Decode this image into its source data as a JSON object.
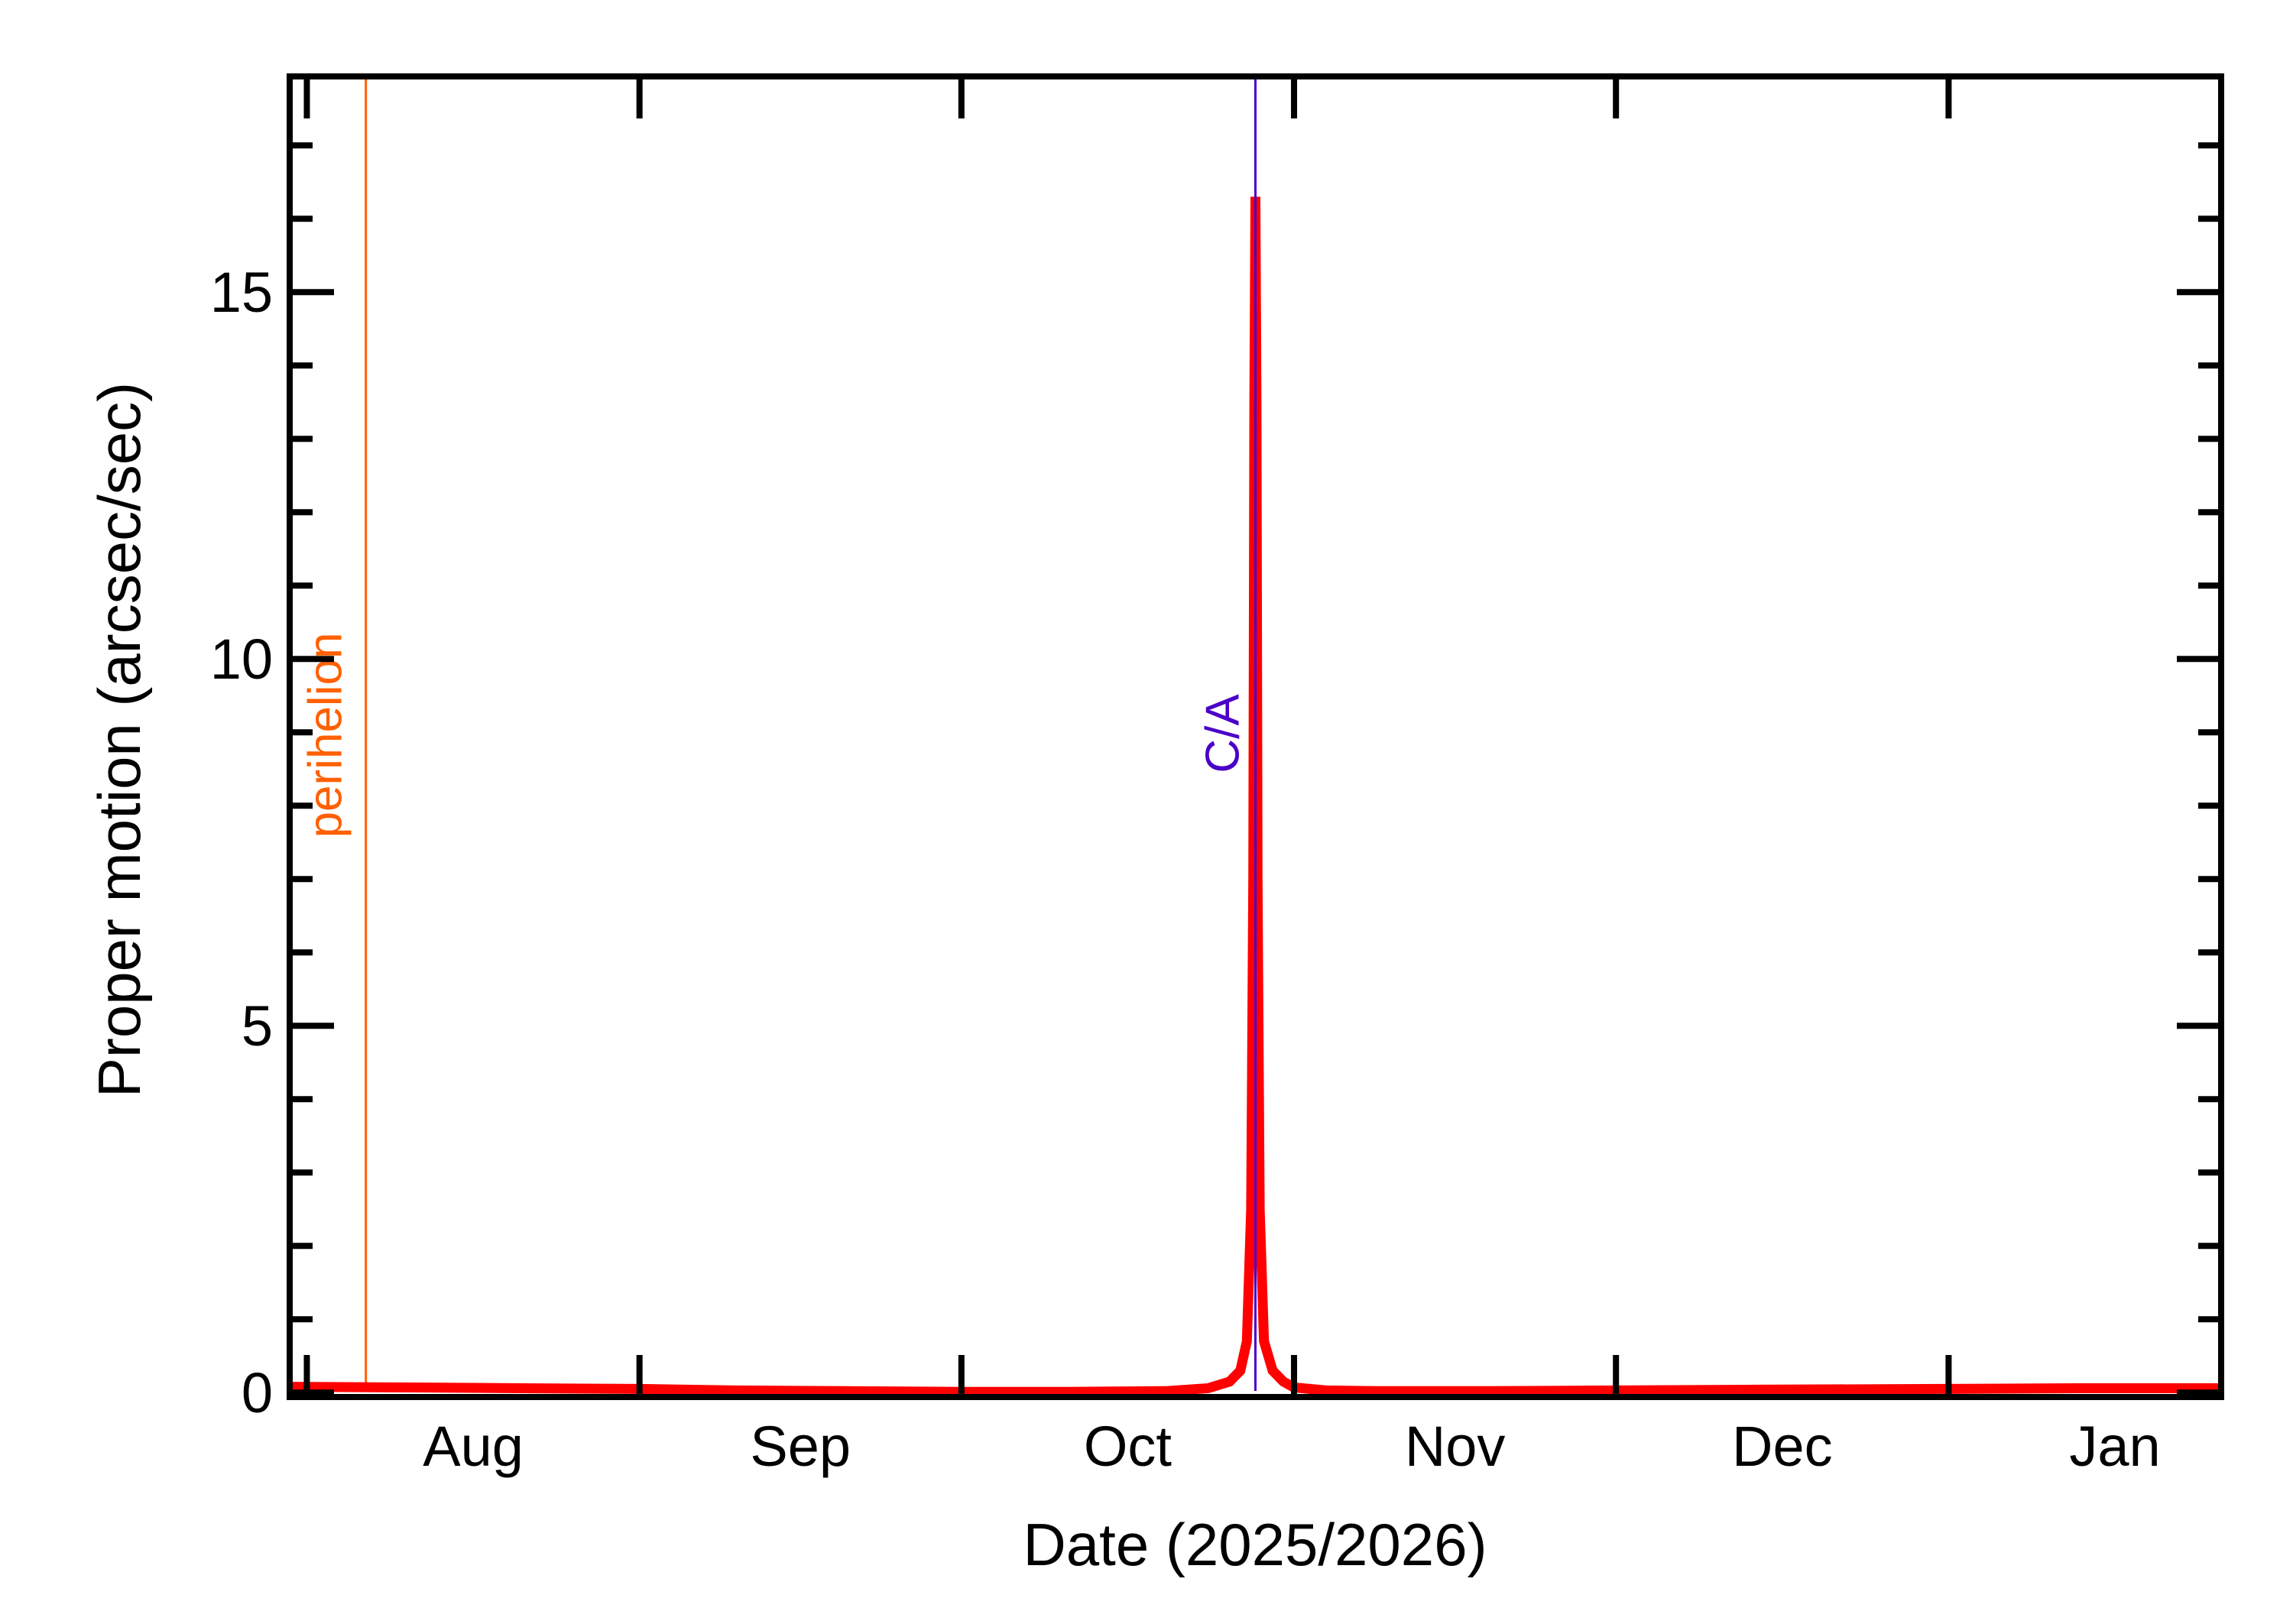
{
  "chart_data": {
    "type": "line",
    "title": "",
    "xlabel": "Date (2025/2026)",
    "ylabel": "Proper motion (arcsec/sec)",
    "x_unit": "days since 2025-08-01",
    "xlim": [
      -1.6,
      178.4
    ],
    "ylim": [
      -0.06,
      17.94
    ],
    "yticks_major": [
      0,
      5,
      10,
      15
    ],
    "ytick_labels": [
      "0",
      "5",
      "10",
      "15"
    ],
    "yticks_minor_step": 1,
    "xticks": [
      {
        "pos": 0,
        "date": "2025-08-01"
      },
      {
        "pos": 31,
        "date": "2025-09-01"
      },
      {
        "pos": 61,
        "date": "2025-10-01"
      },
      {
        "pos": 92,
        "date": "2025-11-01"
      },
      {
        "pos": 122,
        "date": "2025-12-01"
      },
      {
        "pos": 153,
        "date": "2026-01-01"
      }
    ],
    "month_labels": [
      {
        "label": "Aug",
        "center": 15.5
      },
      {
        "label": "Sep",
        "center": 46
      },
      {
        "label": "Oct",
        "center": 76.5
      },
      {
        "label": "Nov",
        "center": 107
      },
      {
        "label": "Dec",
        "center": 137.5
      },
      {
        "label": "Jan",
        "center": 168.5
      }
    ],
    "grid": false,
    "legend": null,
    "series": [
      {
        "name": "proper motion",
        "color": "#ff0000",
        "x": [
          -1.6,
          10,
          20,
          31,
          40,
          50,
          61,
          70,
          80,
          84,
          86,
          87,
          87.6,
          88.0,
          88.2,
          88.3,
          88.4,
          88.5,
          88.6,
          88.8,
          89.2,
          90,
          91,
          92,
          95,
          100,
          110,
          122,
          135,
          153,
          165,
          178.4
        ],
        "y": [
          0.08,
          0.07,
          0.06,
          0.05,
          0.03,
          0.02,
          0.01,
          0.01,
          0.02,
          0.06,
          0.15,
          0.3,
          0.7,
          2.5,
          7.0,
          13.5,
          16.3,
          13.5,
          7.0,
          2.5,
          0.7,
          0.3,
          0.15,
          0.07,
          0.03,
          0.02,
          0.02,
          0.03,
          0.04,
          0.05,
          0.06,
          0.06
        ]
      }
    ],
    "annotations": [
      {
        "label": "perihelion",
        "x": 5.5,
        "color": "#ff6000",
        "type": "vline"
      },
      {
        "label": "C/A",
        "x": 88.4,
        "color": "#4b00c8",
        "type": "vline"
      }
    ],
    "peak": {
      "x": 88.4,
      "y": 16.3,
      "date_approx": "2025-10-28"
    }
  }
}
